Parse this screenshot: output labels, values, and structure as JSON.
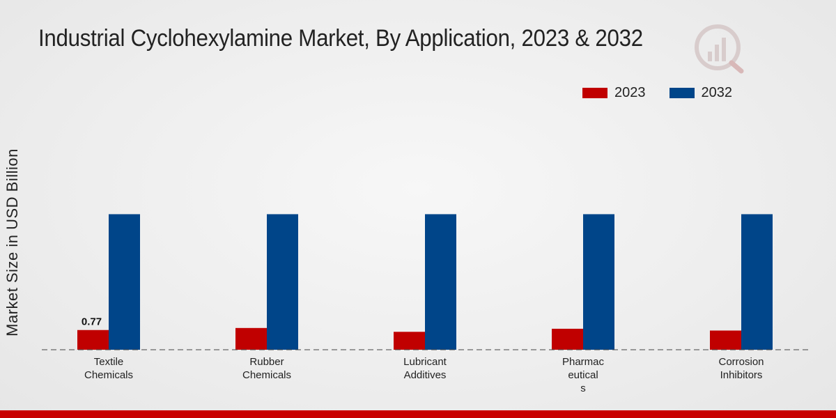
{
  "colors": {
    "series_2023": "#c00000",
    "series_2032": "#004589",
    "accent_bar": "#c80000"
  },
  "logo_icon": "market-research-logo-icon",
  "chart_data": {
    "type": "bar",
    "title": "Industrial Cyclohexylamine Market, By Application, 2023 & 2032",
    "xlabel": "",
    "ylabel": "Market Size in USD Billion",
    "categories": [
      "Textile Chemicals",
      "Rubber Chemicals",
      "Lubricant Additives",
      "Pharmaceuticals",
      "Corrosion Inhibitors"
    ],
    "category_label_lines": [
      [
        "Textile",
        "Chemicals"
      ],
      [
        "Rubber",
        "Chemicals"
      ],
      [
        "Lubricant",
        "Additives"
      ],
      [
        "Pharmac",
        "eutical",
        "s"
      ],
      [
        "Corrosion",
        "Inhibitors"
      ]
    ],
    "series": [
      {
        "name": "2023",
        "color": "#c00000",
        "values": [
          0.77,
          0.85,
          0.7,
          0.82,
          0.75
        ]
      },
      {
        "name": "2032",
        "color": "#004589",
        "values": [
          5.3,
          5.3,
          5.3,
          5.3,
          5.3
        ]
      }
    ],
    "data_labels": [
      {
        "series": 0,
        "index": 0,
        "text": "0.77"
      }
    ],
    "ylim": [
      0,
      8.5
    ],
    "grid": false,
    "legend_position": "top-right"
  }
}
